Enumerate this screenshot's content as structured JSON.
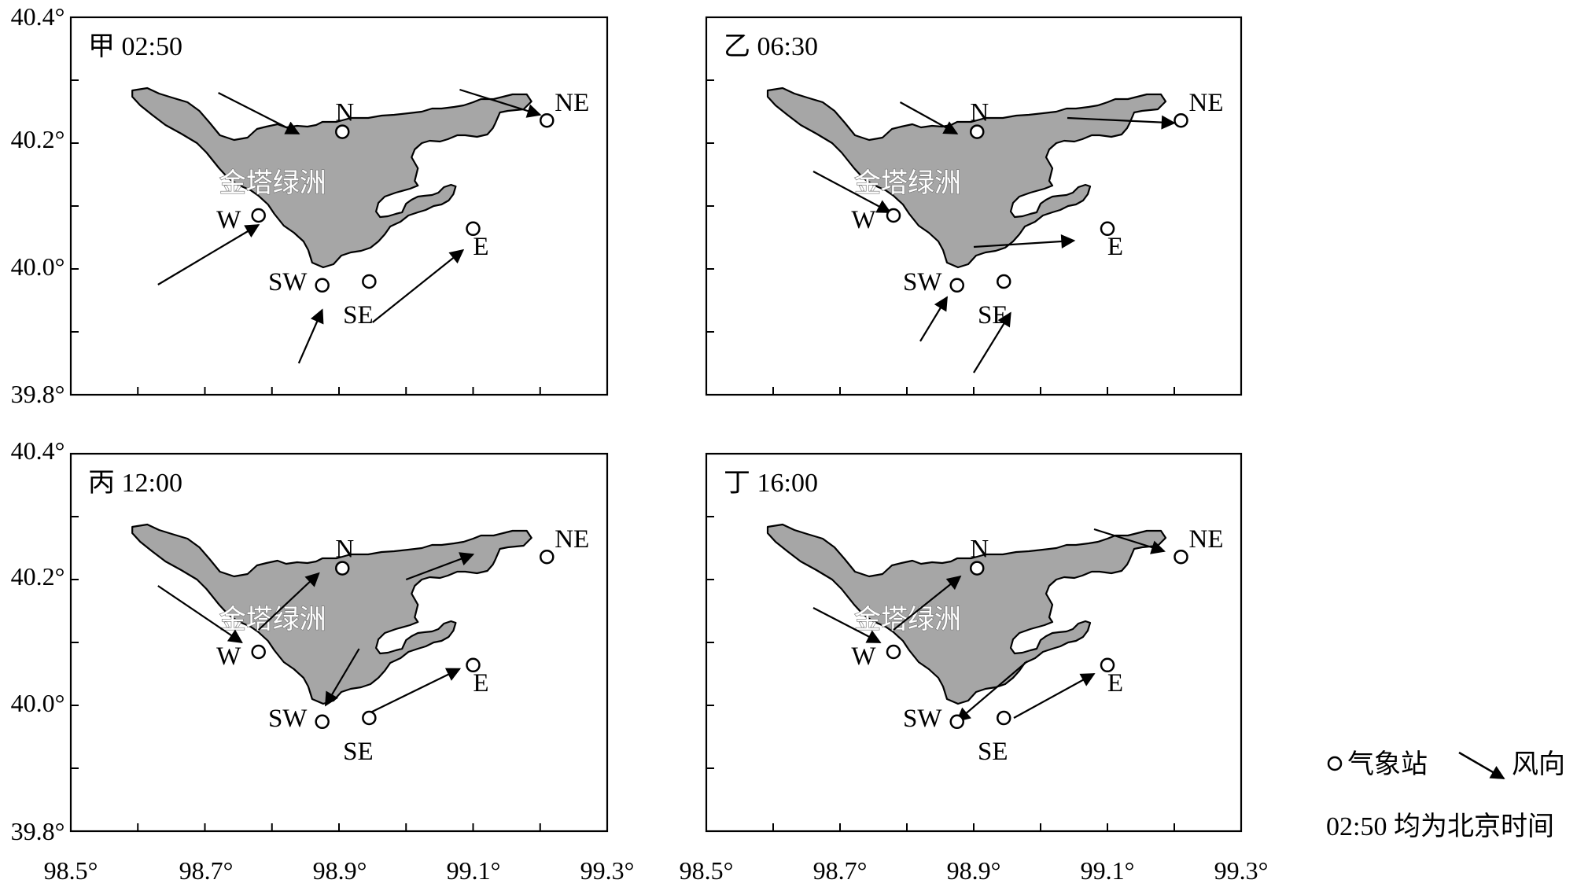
{
  "yaxis": {
    "ticks_labeled": [
      "40.4°",
      "40.2°",
      "40.0°",
      "39.8°"
    ]
  },
  "xaxis": {
    "ticks_labeled": [
      "98.5°",
      "98.7°",
      "98.9°",
      "99.1°",
      "99.3°"
    ]
  },
  "oasis_label": "金塔绿洲",
  "stations": [
    {
      "id": "N",
      "lon": 98.905,
      "lat": 40.218
    },
    {
      "id": "NE",
      "lon": 99.21,
      "lat": 40.236
    },
    {
      "id": "W",
      "lon": 98.78,
      "lat": 40.085
    },
    {
      "id": "E",
      "lon": 99.1,
      "lat": 40.064
    },
    {
      "id": "SW",
      "lon": 98.875,
      "lat": 39.974
    },
    {
      "id": "SE",
      "lon": 98.945,
      "lat": 39.98
    }
  ],
  "panels": [
    {
      "id": "panel-a",
      "title": "甲  02:50",
      "arrows": [
        {
          "station": "N",
          "from": [
            98.72,
            40.28
          ],
          "to": [
            98.84,
            40.215
          ]
        },
        {
          "station": "NE",
          "from": [
            99.08,
            40.285
          ],
          "to": [
            99.2,
            40.245
          ]
        },
        {
          "station": "W",
          "from": [
            98.63,
            39.975
          ],
          "to": [
            98.78,
            40.07
          ]
        },
        {
          "station": "SW",
          "from": [
            98.84,
            39.85
          ],
          "to": [
            98.875,
            39.935
          ]
        },
        {
          "station": "E",
          "from": [
            98.95,
            39.915
          ],
          "to": [
            99.085,
            40.03
          ]
        }
      ]
    },
    {
      "id": "panel-b",
      "title": "乙  06:30",
      "arrows": [
        {
          "station": "N",
          "from": [
            98.79,
            40.265
          ],
          "to": [
            98.875,
            40.215
          ]
        },
        {
          "station": "NE",
          "from": [
            99.04,
            40.24
          ],
          "to": [
            99.2,
            40.232
          ]
        },
        {
          "station": "W",
          "from": [
            98.66,
            40.155
          ],
          "to": [
            98.775,
            40.09
          ]
        },
        {
          "station": "E",
          "from": [
            98.9,
            40.035
          ],
          "to": [
            99.05,
            40.045
          ]
        },
        {
          "station": "SW",
          "from": [
            98.82,
            39.885
          ],
          "to": [
            98.86,
            39.955
          ]
        },
        {
          "station": "SE",
          "from": [
            98.9,
            39.835
          ],
          "to": [
            98.955,
            39.93
          ]
        }
      ]
    },
    {
      "id": "panel-c",
      "title": "丙 12:00",
      "arrows": [
        {
          "station": "NE",
          "from": [
            99.0,
            40.2
          ],
          "to": [
            99.1,
            40.24
          ]
        },
        {
          "station": "W",
          "from": [
            98.63,
            40.19
          ],
          "to": [
            98.755,
            40.1
          ]
        },
        {
          "station": "N",
          "from": [
            98.78,
            40.12
          ],
          "to": [
            98.87,
            40.21
          ]
        },
        {
          "station": "oasis-center",
          "from": [
            98.93,
            40.09
          ],
          "to": [
            98.88,
            40.0
          ]
        },
        {
          "station": "SE",
          "from": [
            98.94,
            39.985
          ],
          "to": [
            99.08,
            40.058
          ]
        }
      ]
    },
    {
      "id": "panel-d",
      "title": "丁  16:00",
      "arrows": [
        {
          "station": "NE",
          "from": [
            99.08,
            40.28
          ],
          "to": [
            99.185,
            40.245
          ]
        },
        {
          "station": "W",
          "from": [
            98.66,
            40.155
          ],
          "to": [
            98.76,
            40.1
          ]
        },
        {
          "station": "N",
          "from": [
            98.78,
            40.12
          ],
          "to": [
            98.88,
            40.205
          ]
        },
        {
          "station": "SW-flow",
          "from": [
            98.98,
            40.07
          ],
          "to": [
            98.875,
            39.975
          ]
        },
        {
          "station": "E",
          "from": [
            98.96,
            39.98
          ],
          "to": [
            99.08,
            40.05
          ]
        }
      ]
    }
  ],
  "legend": {
    "station_label": "气象站",
    "wind_label": "风向",
    "note": "02:50 均为北京时间"
  },
  "colors": {
    "oasis_fill": "#a6a6a6",
    "line": "#000000",
    "background": "#ffffff"
  }
}
